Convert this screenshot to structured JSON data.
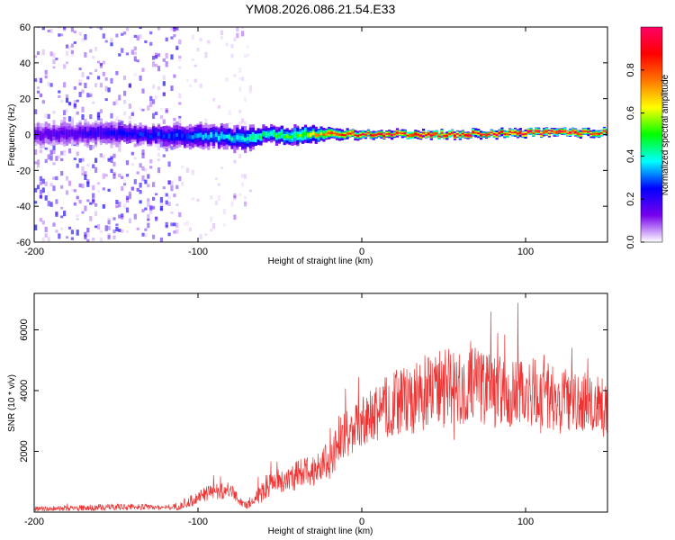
{
  "chart_data": [
    {
      "type": "heatmap",
      "title": "YM08.2026.086.21.54.E33",
      "xlabel": "Height of straight line (km)",
      "ylabel": "Frequency (Hz)",
      "xlim": [
        -200,
        150
      ],
      "ylim": [
        -60,
        60
      ],
      "xticks": [
        -200,
        -100,
        0,
        100
      ],
      "xtick_labels": [
        "-200",
        "-100",
        "0",
        "100"
      ],
      "yticks": [
        -60,
        -40,
        -20,
        0,
        20,
        40,
        60
      ],
      "ytick_labels": [
        "-60",
        "-40",
        "-20",
        "0",
        "20",
        "40",
        "60"
      ],
      "colorbar": {
        "label": "Normalized spectral amplitude",
        "range": [
          0,
          1
        ],
        "ticks": [
          0.0,
          0.2,
          0.4,
          0.6,
          0.8
        ],
        "tick_labels": [
          "0.0",
          "0.2",
          "0.4",
          "0.6",
          "0.8"
        ],
        "colormap": [
          "#ffffff",
          "#7700ee",
          "#0000ff",
          "#00ffff",
          "#00ff00",
          "#ffff00",
          "#ff7700",
          "#ff0000",
          "#ff0066"
        ]
      },
      "regions": [
        {
          "x": [
            -200,
            -112
          ],
          "description": "broadband scattered energy",
          "amplitude": 0.08
        },
        {
          "x": [
            -112,
            -68
          ],
          "description": "sparse scattered energy",
          "amplitude": 0.03
        },
        {
          "x": [
            -80,
            -72
          ],
          "description": "vertical stripe",
          "amplitude": 0.05
        }
      ],
      "band": [
        {
          "x": -200,
          "center": 0,
          "halfwidth": 6,
          "amplitude": 0.15
        },
        {
          "x": -160,
          "center": 1,
          "halfwidth": 6,
          "amplitude": 0.2
        },
        {
          "x": -140,
          "center": 0,
          "halfwidth": 5,
          "amplitude": 0.25
        },
        {
          "x": -110,
          "center": -1,
          "halfwidth": 6,
          "amplitude": 0.28
        },
        {
          "x": -90,
          "center": -1,
          "halfwidth": 6,
          "amplitude": 0.35
        },
        {
          "x": -70,
          "center": -3,
          "halfwidth": 6,
          "amplitude": 0.4
        },
        {
          "x": -60,
          "center": 0,
          "halfwidth": 4,
          "amplitude": 0.45
        },
        {
          "x": -40,
          "center": -1,
          "halfwidth": 5,
          "amplitude": 0.5
        },
        {
          "x": -20,
          "center": 1,
          "halfwidth": 3,
          "amplitude": 0.75
        },
        {
          "x": 0,
          "center": 0,
          "halfwidth": 2,
          "amplitude": 0.9
        },
        {
          "x": 50,
          "center": 0,
          "halfwidth": 2,
          "amplitude": 0.92
        },
        {
          "x": 100,
          "center": 1,
          "halfwidth": 2,
          "amplitude": 0.92
        },
        {
          "x": 150,
          "center": 1,
          "halfwidth": 2,
          "amplitude": 0.9
        }
      ]
    },
    {
      "type": "line",
      "xlabel": "Height of straight line (km)",
      "ylabel": "SNR (10 * v/v)",
      "xlim": [
        -200,
        150
      ],
      "ylim": [
        0,
        7200
      ],
      "xticks": [
        -200,
        -100,
        0,
        100
      ],
      "xtick_labels": [
        "-200",
        "-100",
        "0",
        "100"
      ],
      "yticks": [
        2000,
        4000,
        6000
      ],
      "ytick_labels": [
        "2000",
        "4000",
        "6000"
      ],
      "color": "#ee3333",
      "series": [
        {
          "name": "SNR",
          "x": [
            -200,
            -180,
            -160,
            -140,
            -120,
            -110,
            -100,
            -90,
            -80,
            -75,
            -70,
            -60,
            -55,
            -50,
            -40,
            -30,
            -20,
            -15,
            -10,
            -5,
            0,
            10,
            20,
            30,
            40,
            50,
            60,
            70,
            80,
            90,
            100,
            110,
            120,
            130,
            140,
            150
          ],
          "baseline": [
            100,
            120,
            150,
            180,
            150,
            200,
            500,
            700,
            700,
            400,
            200,
            700,
            1100,
            1000,
            1200,
            1400,
            1700,
            2200,
            2700,
            2600,
            2900,
            3300,
            3600,
            3700,
            4000,
            4100,
            4000,
            4200,
            4000,
            3900,
            3900,
            3800,
            3900,
            3700,
            3600,
            3500
          ],
          "spread": [
            150,
            150,
            200,
            200,
            150,
            250,
            400,
            500,
            500,
            300,
            200,
            700,
            900,
            700,
            900,
            1000,
            1200,
            1300,
            1500,
            1500,
            1600,
            1800,
            2000,
            2100,
            2300,
            2400,
            2300,
            2300,
            2200,
            2200,
            2200,
            2200,
            2100,
            2000,
            2000,
            2000
          ]
        }
      ]
    }
  ]
}
